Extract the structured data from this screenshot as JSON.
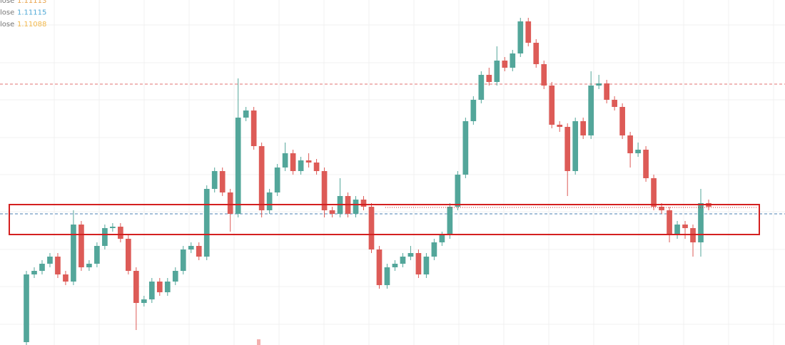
{
  "chart_data": {
    "type": "candlestick",
    "ylim": [
      1.10931,
      1.11415
    ],
    "up_color": "#53a69a",
    "down_color": "#dd5b57",
    "legend": [
      {
        "label": "lose",
        "value": "1.11113",
        "color": "#e8a24a"
      },
      {
        "label": "lose",
        "value": "1.11115",
        "color": "#4ea8d6"
      },
      {
        "label": "lose",
        "value": "1.11088",
        "color": "#f2b84b"
      }
    ],
    "price_lines": [
      {
        "value": 1.11297,
        "color": "#e07070"
      },
      {
        "value": 1.11115,
        "color": "#4a7fb0"
      }
    ],
    "open": [
      1.10935,
      1.1103,
      1.11035,
      1.11045,
      1.11055,
      1.1103,
      1.1102,
      1.111,
      1.1104,
      1.11045,
      1.1107,
      1.11095,
      1.11097,
      1.1108,
      1.11035,
      1.1099,
      1.10995,
      1.1102,
      1.11005,
      1.1102,
      1.11035,
      1.11065,
      1.1107,
      1.11055,
      1.1115,
      1.11175,
      1.11145,
      1.11115,
      1.1125,
      1.1126,
      1.1121,
      1.1112,
      1.11145,
      1.1118,
      1.112,
      1.11175,
      1.1119,
      1.11187,
      1.11175,
      1.1112,
      1.11115,
      1.1114,
      1.11115,
      1.11135,
      1.11125,
      1.11065,
      1.11015,
      1.1104,
      1.11045,
      1.11055,
      1.1106,
      1.1103,
      1.11055,
      1.11075,
      1.11085,
      1.11125,
      1.1117,
      1.11245,
      1.11275,
      1.1131,
      1.113,
      1.1133,
      1.1132,
      1.1134,
      1.11385,
      1.11355,
      1.11325,
      1.11295,
      1.1124,
      1.11237,
      1.11175,
      1.11245,
      1.11225,
      1.11295,
      1.11298,
      1.11275,
      1.11265,
      1.11225,
      1.112,
      1.11205,
      1.11165,
      1.11125,
      1.1112,
      1.11085,
      1.111,
      1.11095,
      1.11075,
      1.1113
    ],
    "high": [
      1.11035,
      1.1104,
      1.1105,
      1.1106,
      1.1106,
      1.11035,
      1.1112,
      1.11105,
      1.1105,
      1.11075,
      1.111,
      1.11102,
      1.11102,
      1.11085,
      1.1104,
      1.11,
      1.11025,
      1.11025,
      1.11025,
      1.1104,
      1.1107,
      1.11075,
      1.11075,
      1.11155,
      1.1118,
      1.1118,
      1.1115,
      1.11305,
      1.11265,
      1.11265,
      1.11215,
      1.1115,
      1.11185,
      1.11215,
      1.11205,
      1.11195,
      1.112,
      1.11192,
      1.1118,
      1.11125,
      1.11165,
      1.11145,
      1.1114,
      1.1114,
      1.1113,
      1.1107,
      1.11045,
      1.1105,
      1.1106,
      1.1107,
      1.11065,
      1.1106,
      1.1108,
      1.1109,
      1.1113,
      1.11175,
      1.1125,
      1.1128,
      1.11315,
      1.1132,
      1.1135,
      1.11335,
      1.11345,
      1.1139,
      1.1139,
      1.1136,
      1.1133,
      1.113,
      1.11245,
      1.11242,
      1.1125,
      1.1125,
      1.11315,
      1.1131,
      1.11303,
      1.1128,
      1.1127,
      1.1123,
      1.11215,
      1.1121,
      1.1117,
      1.1113,
      1.11125,
      1.11105,
      1.11105,
      1.111,
      1.1115,
      1.11135
    ],
    "low": [
      1.1093,
      1.11025,
      1.1103,
      1.1104,
      1.11025,
      1.11015,
      1.11015,
      1.11035,
      1.11035,
      1.1104,
      1.11065,
      1.1109,
      1.11075,
      1.1103,
      1.10952,
      1.10985,
      1.1099,
      1.11,
      1.11,
      1.11015,
      1.1103,
      1.1106,
      1.1105,
      1.1105,
      1.11145,
      1.1114,
      1.1109,
      1.1111,
      1.11245,
      1.11205,
      1.1111,
      1.11115,
      1.1114,
      1.11175,
      1.1117,
      1.1117,
      1.1118,
      1.1117,
      1.1111,
      1.1111,
      1.1111,
      1.1111,
      1.1111,
      1.1112,
      1.1106,
      1.1101,
      1.1101,
      1.11035,
      1.1104,
      1.1105,
      1.11025,
      1.11025,
      1.1105,
      1.1107,
      1.1108,
      1.1112,
      1.11165,
      1.1124,
      1.1127,
      1.11295,
      1.11295,
      1.11315,
      1.11315,
      1.11335,
      1.1135,
      1.1132,
      1.1129,
      1.11235,
      1.1123,
      1.1114,
      1.1117,
      1.1122,
      1.1122,
      1.1129,
      1.1127,
      1.1126,
      1.1122,
      1.1118,
      1.11195,
      1.1116,
      1.1112,
      1.11115,
      1.11075,
      1.1108,
      1.1108,
      1.11055,
      1.11055,
      1.1112
    ],
    "close": [
      1.1103,
      1.11035,
      1.11045,
      1.11055,
      1.1103,
      1.1102,
      1.111,
      1.1104,
      1.11045,
      1.1107,
      1.11095,
      1.11097,
      1.1108,
      1.11035,
      1.1099,
      1.10995,
      1.1102,
      1.11005,
      1.1102,
      1.11035,
      1.11065,
      1.1107,
      1.11055,
      1.1115,
      1.11175,
      1.11145,
      1.11115,
      1.1125,
      1.1126,
      1.1121,
      1.1112,
      1.11145,
      1.1118,
      1.112,
      1.11175,
      1.1119,
      1.11187,
      1.11175,
      1.1112,
      1.11115,
      1.1114,
      1.11115,
      1.11135,
      1.11125,
      1.11065,
      1.11015,
      1.1104,
      1.11045,
      1.11055,
      1.1106,
      1.1103,
      1.11055,
      1.11075,
      1.11085,
      1.11125,
      1.1117,
      1.11245,
      1.11275,
      1.1131,
      1.113,
      1.1133,
      1.1132,
      1.1134,
      1.11385,
      1.11355,
      1.11325,
      1.11295,
      1.1124,
      1.11237,
      1.11175,
      1.11245,
      1.11225,
      1.11295,
      1.11298,
      1.11275,
      1.11265,
      1.11225,
      1.112,
      1.11205,
      1.11165,
      1.11125,
      1.1112,
      1.11085,
      1.111,
      1.11095,
      1.11075,
      1.1113,
      1.11125
    ]
  }
}
